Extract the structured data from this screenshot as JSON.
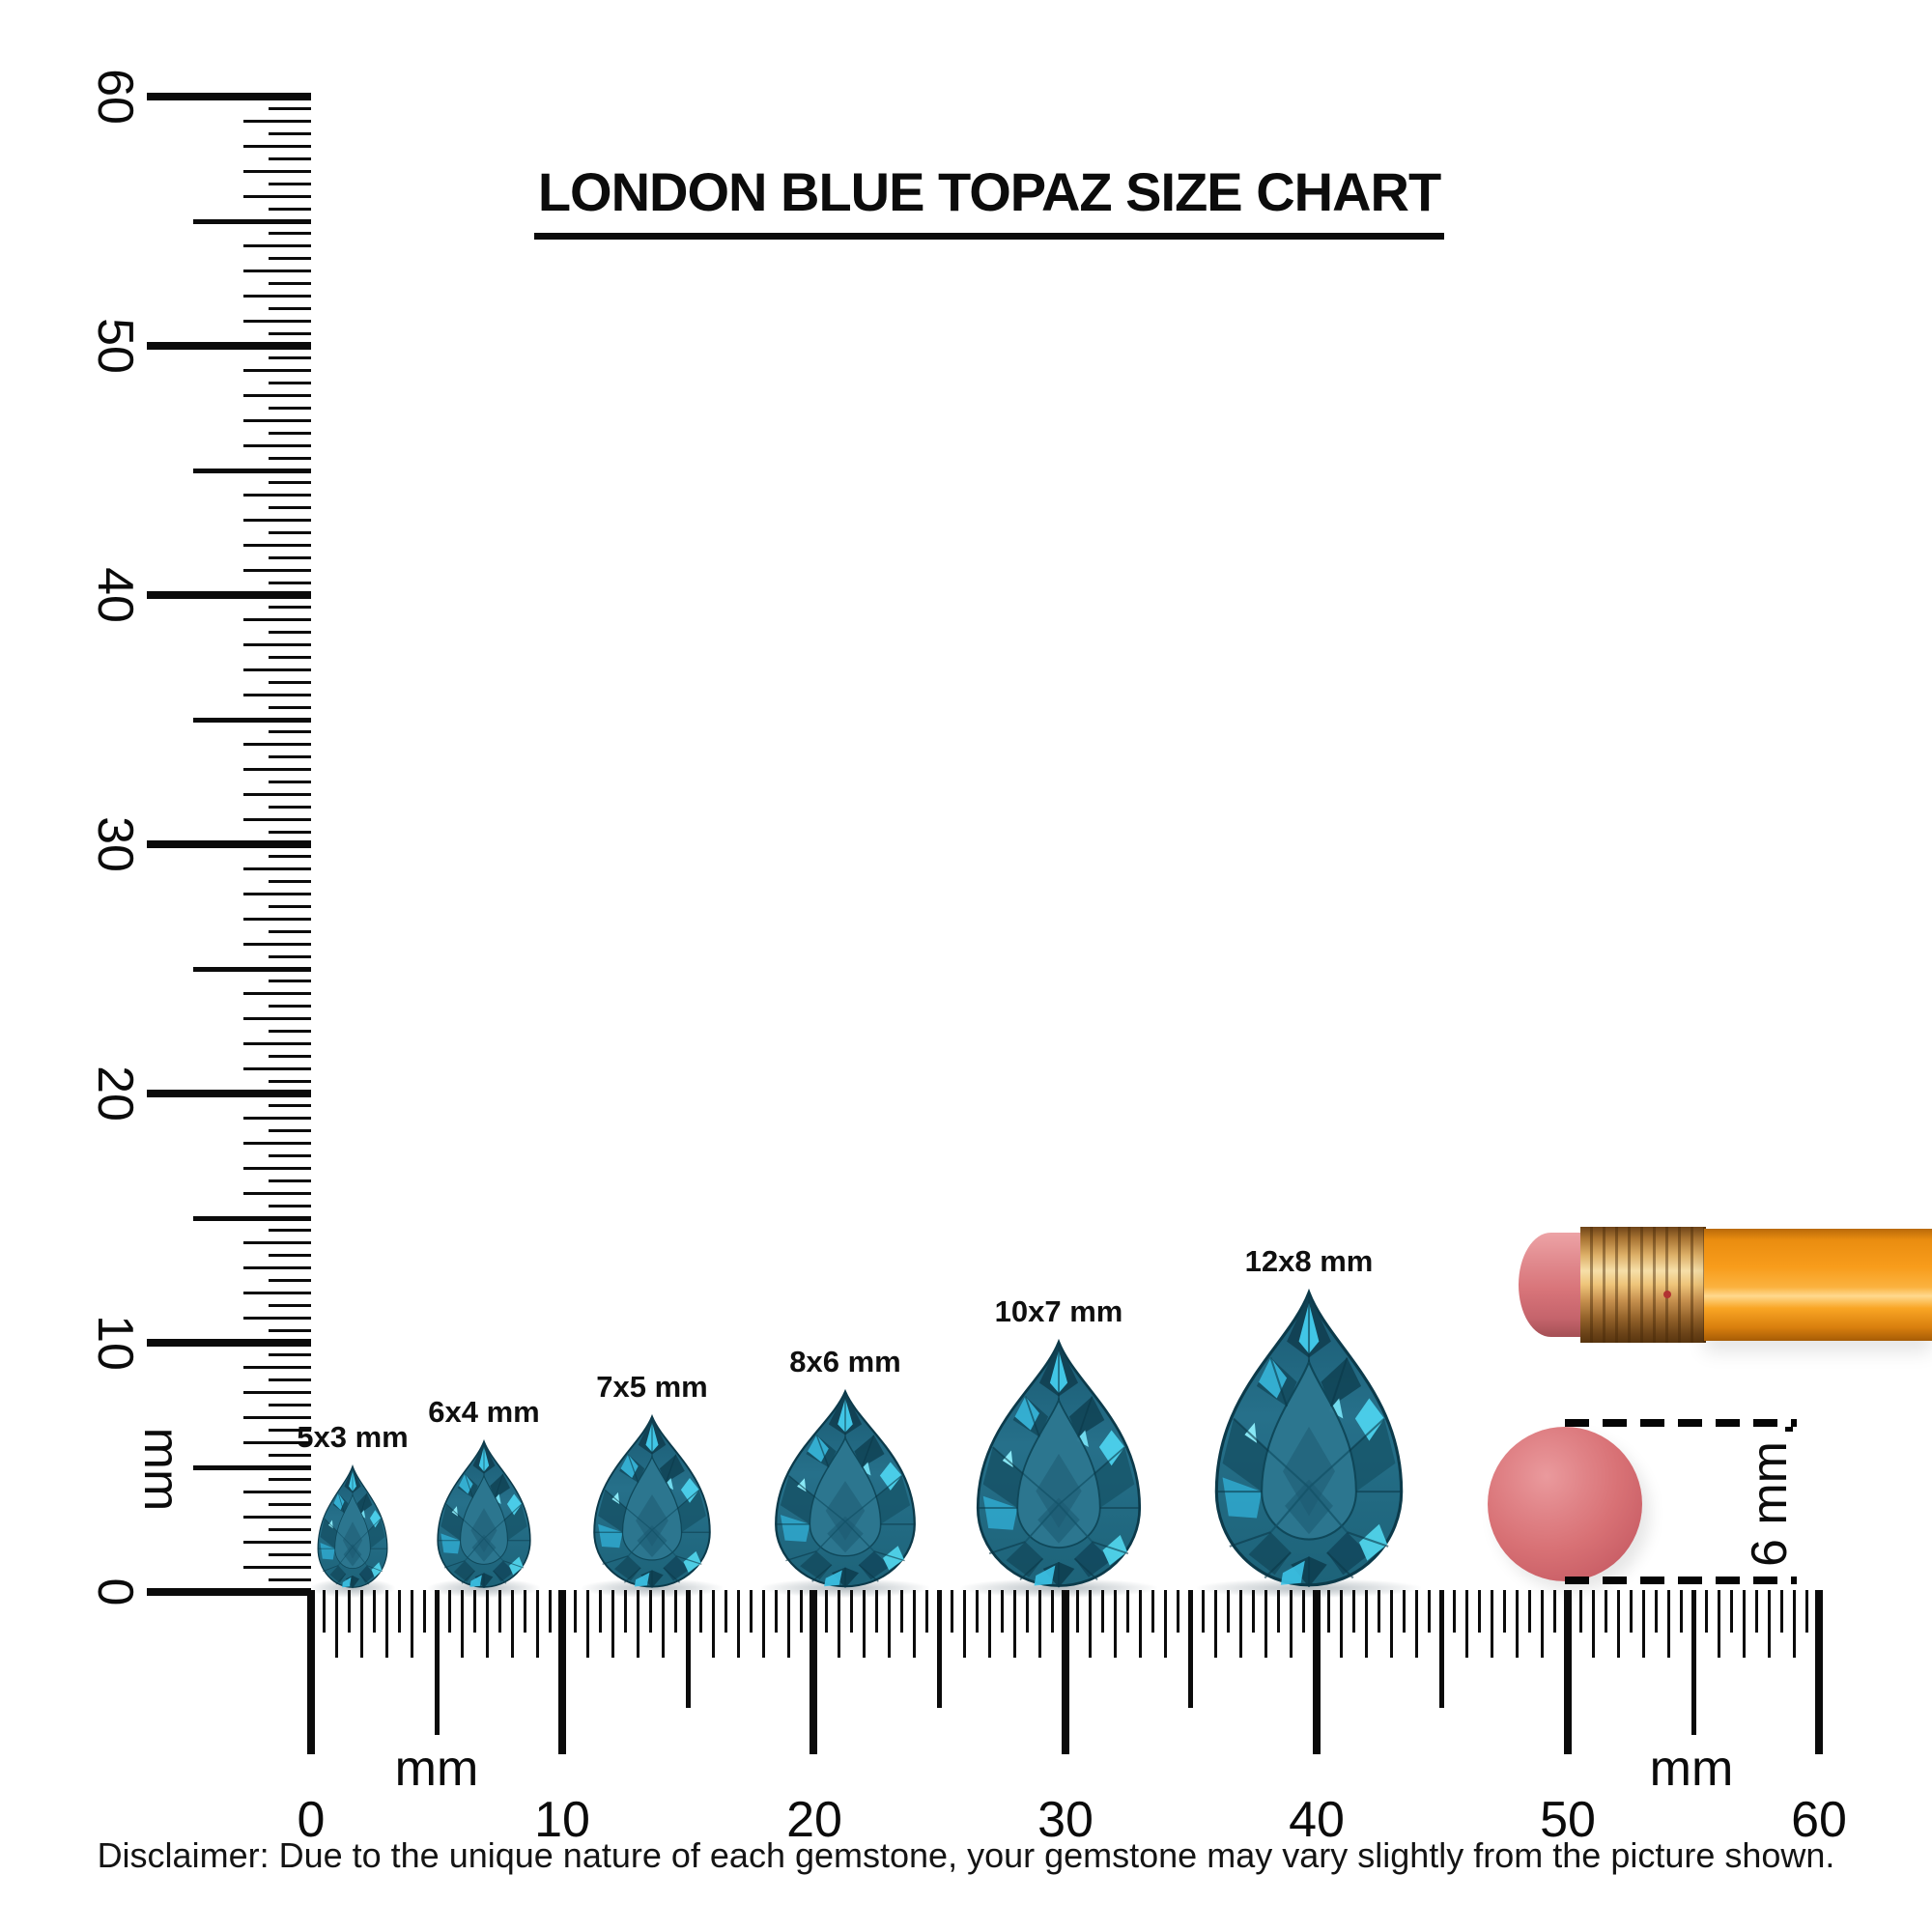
{
  "title": "LONDON BLUE TOPAZ SIZE CHART",
  "vertical_ruler": {
    "unit": "mm",
    "tick_step_mm": 0.5,
    "range_mm": [
      0,
      60
    ],
    "numbers": [
      "60",
      "50",
      "40",
      "30",
      "20",
      "10",
      "0"
    ]
  },
  "horizontal_ruler": {
    "unit": "mm",
    "tick_step_mm": 0.5,
    "range_mm": [
      0,
      60
    ],
    "numbers": [
      "0",
      "10",
      "20",
      "30",
      "40",
      "50",
      "60"
    ],
    "unit_labels": [
      "mm",
      "mm"
    ]
  },
  "gems": [
    {
      "label": "5x3 mm",
      "height_mm": 5,
      "width_mm": 3
    },
    {
      "label": "6x4 mm",
      "height_mm": 6,
      "width_mm": 4
    },
    {
      "label": "7x5 mm",
      "height_mm": 7,
      "width_mm": 5
    },
    {
      "label": "8x6 mm",
      "height_mm": 8,
      "width_mm": 6
    },
    {
      "label": "10x7 mm",
      "height_mm": 10,
      "width_mm": 7
    },
    {
      "label": "12x8 mm",
      "height_mm": 12,
      "width_mm": 8
    }
  ],
  "comparison": {
    "object": "pencil with eraser",
    "diameter_label": "6 mm",
    "eraser_diameter_mm": 6
  },
  "disclaimer": "Disclaimer: Due to the unique nature of each gemstone, your gemstone may vary slightly from the picture shown.",
  "colors": {
    "ink": "#0b0b0b",
    "gem_body": "#26708a",
    "gem_dark": "#113f51",
    "gem_bright": "#45cdee",
    "pencil_orange": "#f89c1b",
    "ferrule_gold": "#dcae66",
    "eraser_pink": "#d87479"
  }
}
